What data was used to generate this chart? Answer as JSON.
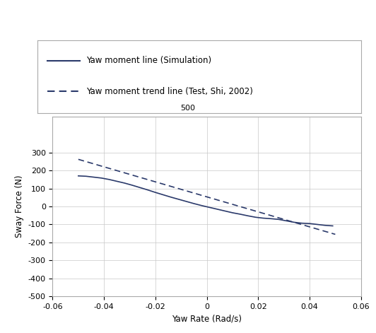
{
  "title": "",
  "xlabel": "Yaw Rate (Rad/s)",
  "ylabel": "Sway Force (N)",
  "xlim": [
    -0.06,
    0.06
  ],
  "ylim": [
    -500,
    500
  ],
  "yticks": [
    -500,
    -400,
    -300,
    -200,
    -100,
    0,
    100,
    200,
    300
  ],
  "xticks": [
    -0.06,
    -0.04,
    -0.02,
    0,
    0.02,
    0.04,
    0.06
  ],
  "line_color": "#2b3a6b",
  "legend_solid": "Yaw moment line (Simulation)",
  "legend_dashed": "Yaw moment trend line (Test, Shi, 2002)",
  "sim_x": [
    -0.05,
    -0.047,
    -0.044,
    -0.041,
    -0.038,
    -0.035,
    -0.032,
    -0.029,
    -0.026,
    -0.023,
    -0.02,
    -0.017,
    -0.014,
    -0.011,
    -0.008,
    -0.005,
    -0.002,
    0.001,
    0.004,
    0.007,
    0.01,
    0.013,
    0.016,
    0.019,
    0.022,
    0.025,
    0.028,
    0.031,
    0.034,
    0.037,
    0.04,
    0.043,
    0.046,
    0.049
  ],
  "sim_y": [
    170,
    168,
    163,
    158,
    150,
    140,
    130,
    118,
    105,
    92,
    78,
    65,
    52,
    40,
    28,
    16,
    5,
    -5,
    -15,
    -25,
    -35,
    -43,
    -52,
    -60,
    -65,
    -68,
    -72,
    -80,
    -88,
    -93,
    -95,
    -100,
    -105,
    -108
  ],
  "trend_x": [
    -0.05,
    0.05
  ],
  "trend_y": [
    262,
    -155
  ],
  "background_color": "#ffffff",
  "grid_color": "#c8c8c8",
  "spine_color": "#aaaaaa"
}
